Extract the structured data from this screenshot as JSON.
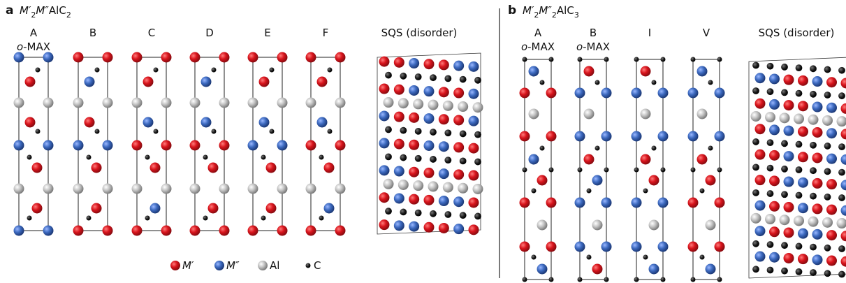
{
  "panels": [
    {
      "label": "a",
      "formula": [
        "M′",
        "2",
        "M″",
        "AlC",
        "2"
      ],
      "columns": [
        {
          "name": "A",
          "subtitle": [
            "o",
            "-MAX"
          ]
        },
        {
          "name": "B"
        },
        {
          "name": "C"
        },
        {
          "name": "D"
        },
        {
          "name": "E"
        },
        {
          "name": "F"
        },
        {
          "name": "SQS (disorder)"
        }
      ],
      "legend": [
        "M′",
        "M″",
        "Al",
        "C"
      ]
    },
    {
      "label": "b",
      "formula": [
        "M′",
        "2",
        "M″",
        "2",
        "AlC",
        "3"
      ],
      "columns": [
        {
          "name": "A",
          "subtitle": [
            "o",
            "-MAX"
          ]
        },
        {
          "name": "B",
          "subtitle": [
            "o",
            "-MAX"
          ]
        },
        {
          "name": "I"
        },
        {
          "name": "V"
        },
        {
          "name": "SQS (disorder)"
        }
      ]
    }
  ]
}
